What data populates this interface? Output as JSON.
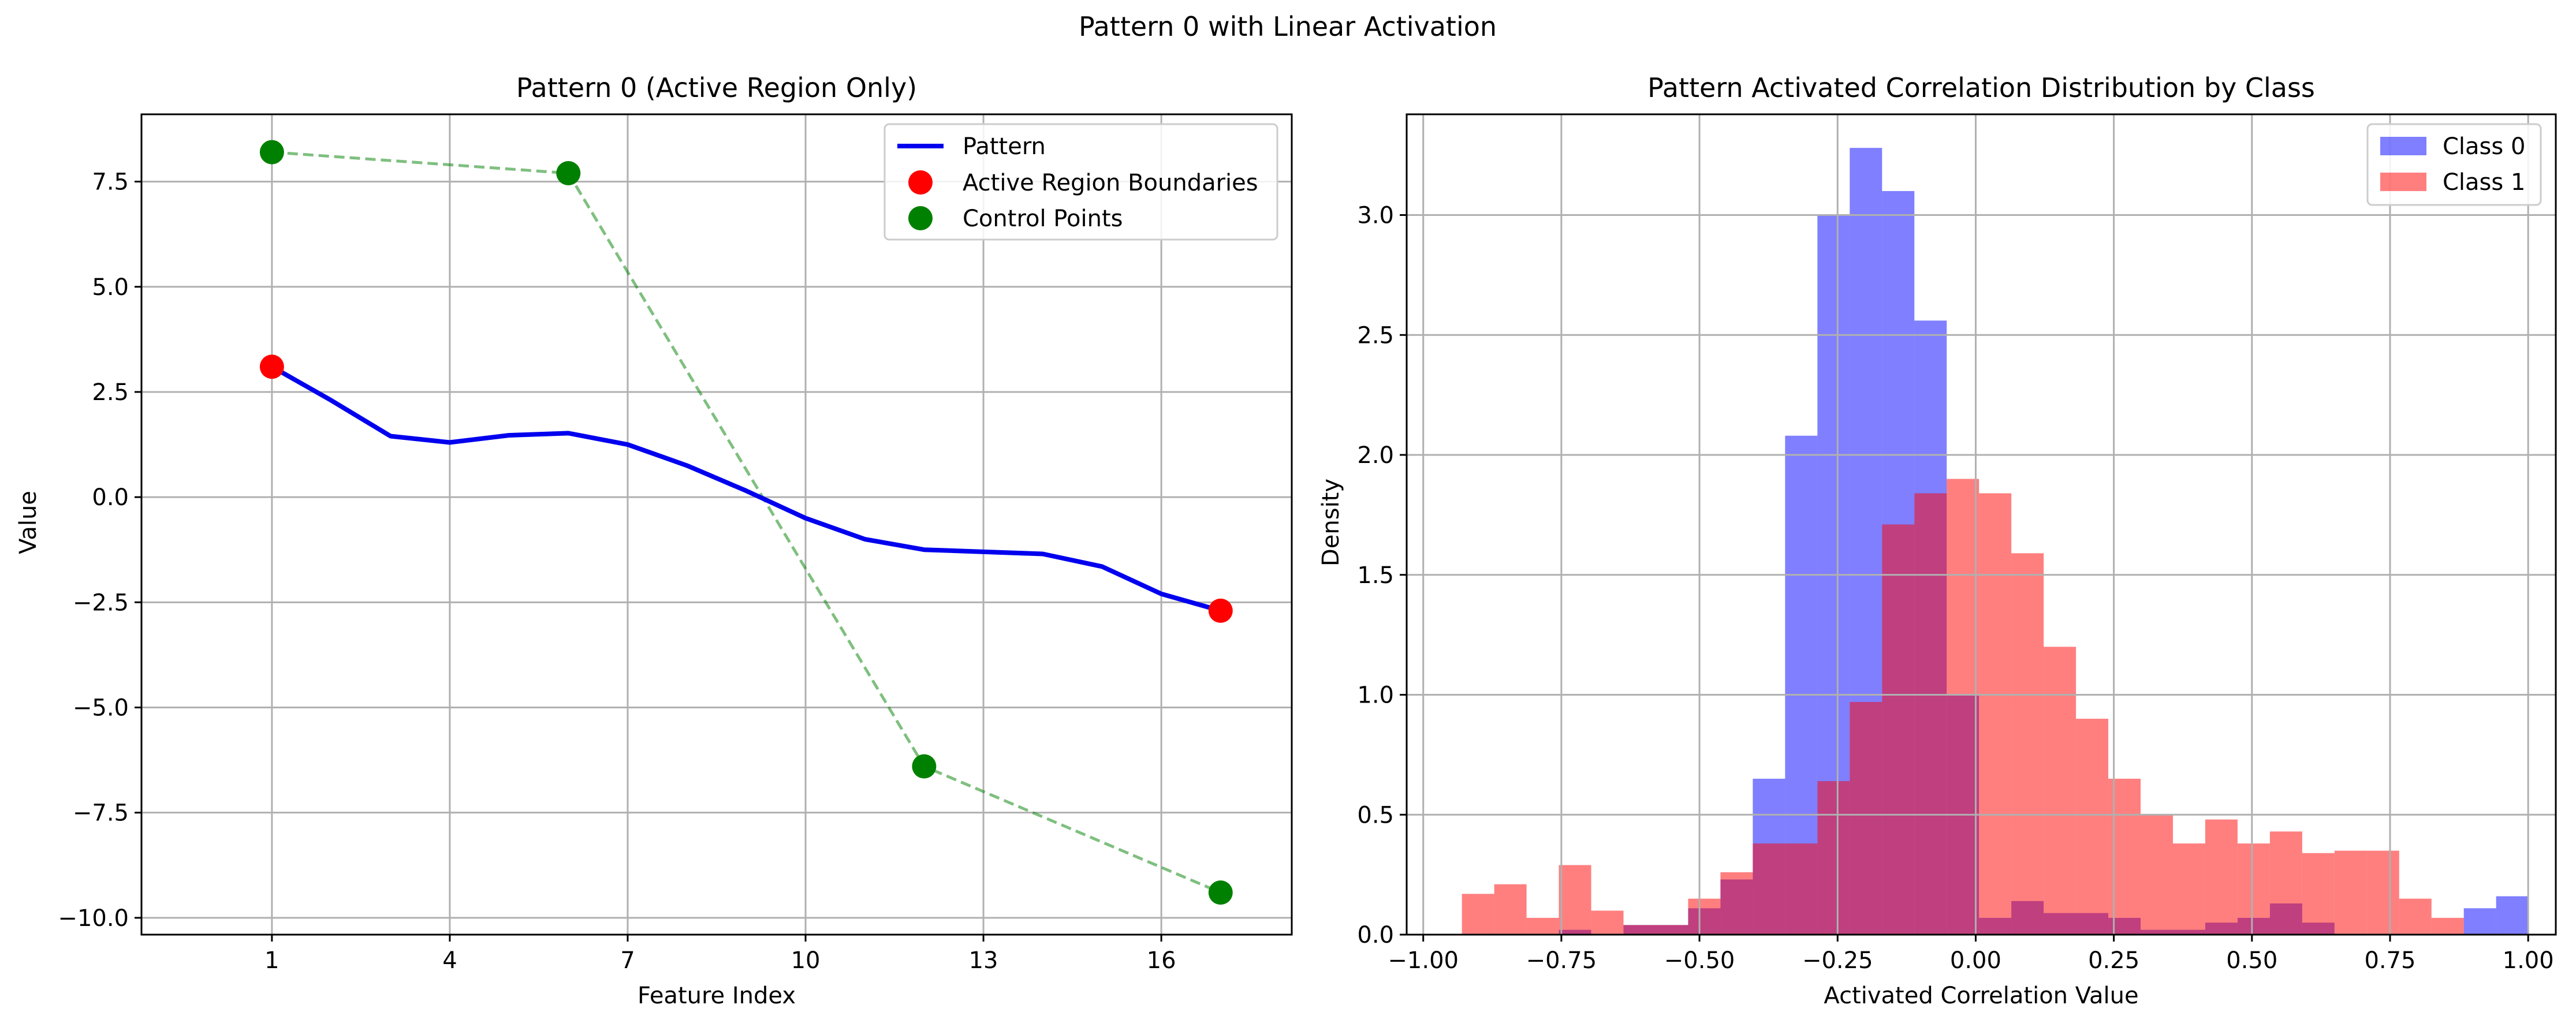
{
  "figure": {
    "suptitle": "Pattern 0 with Linear Activation"
  },
  "chart_data": [
    {
      "type": "line",
      "title": "Pattern 0 (Active Region Only)",
      "xlabel": "Feature Index",
      "ylabel": "Value",
      "xlim": [
        -1.2,
        18.2
      ],
      "ylim": [
        -10.4,
        9.1
      ],
      "xticks": [
        1,
        4,
        7,
        10,
        13,
        16
      ],
      "yticks": [
        -10.0,
        -7.5,
        -5.0,
        -2.5,
        0.0,
        2.5,
        5.0,
        7.5
      ],
      "ytick_labels": [
        "−10.0",
        "−7.5",
        "−5.0",
        "−2.5",
        "0.0",
        "2.5",
        "5.0",
        "7.5"
      ],
      "grid": true,
      "legend": {
        "position": "upper right",
        "entries": [
          "Pattern",
          "Active Region Boundaries",
          "Control Points"
        ]
      },
      "series": [
        {
          "name": "Pattern",
          "style": "line",
          "color": "#0000ee",
          "x": [
            1,
            2,
            3,
            4,
            5,
            6,
            7,
            8,
            9,
            10,
            11,
            12,
            13,
            14,
            15,
            16,
            17
          ],
          "y": [
            3.1,
            2.3,
            1.45,
            1.3,
            1.47,
            1.52,
            1.25,
            0.75,
            0.15,
            -0.5,
            -1.0,
            -1.25,
            -1.3,
            -1.35,
            -1.65,
            -2.3,
            -2.7
          ]
        },
        {
          "name": "Active Region Boundaries",
          "style": "markers",
          "color": "#ff0000",
          "x": [
            1,
            17
          ],
          "y": [
            3.1,
            -2.7
          ]
        },
        {
          "name": "Control Points",
          "style": "markers+dashed-line",
          "color": "#008000",
          "x": [
            1,
            6,
            12,
            17
          ],
          "y": [
            8.2,
            7.7,
            -6.4,
            -9.4
          ]
        }
      ]
    },
    {
      "type": "histogram",
      "title": "Pattern Activated Correlation Distribution by Class",
      "xlabel": "Activated Correlation Value",
      "ylabel": "Density",
      "xlim": [
        -1.03,
        1.05
      ],
      "ylim": [
        0,
        3.42
      ],
      "xticks": [
        -1.0,
        -0.75,
        -0.5,
        -0.25,
        0.0,
        0.25,
        0.5,
        0.75,
        1.0
      ],
      "xtick_labels": [
        "−1.00",
        "−0.75",
        "−0.50",
        "−0.25",
        "0.00",
        "0.25",
        "0.50",
        "0.75",
        "1.00"
      ],
      "yticks": [
        0.0,
        0.5,
        1.0,
        1.5,
        2.0,
        2.5,
        3.0
      ],
      "ytick_labels": [
        "0.0",
        "0.5",
        "1.0",
        "1.5",
        "2.0",
        "2.5",
        "3.0"
      ],
      "grid": true,
      "legend": {
        "position": "upper right",
        "entries": [
          "Class 0",
          "Class 1"
        ]
      },
      "series": [
        {
          "name": "Class 0",
          "color": "#0000ff",
          "opacity": 0.5,
          "bin_start": -0.93,
          "bin_width": 0.0585,
          "values": [
            0,
            0,
            0,
            0.02,
            0,
            0.04,
            0.04,
            0.11,
            0.23,
            0.65,
            2.08,
            3.0,
            3.28,
            3.1,
            2.56,
            1.0,
            0.07,
            0.14,
            0.09,
            0.09,
            0.07,
            0.02,
            0.02,
            0.05,
            0.07,
            0.13,
            0.05,
            0,
            0,
            0,
            0,
            0.11,
            0.16
          ]
        },
        {
          "name": "Class 1",
          "color": "#ff0000",
          "opacity": 0.5,
          "bin_start": -0.93,
          "bin_width": 0.0585,
          "values": [
            0.17,
            0.21,
            0.07,
            0.29,
            0.1,
            0.04,
            0.04,
            0.15,
            0.26,
            0.38,
            0.38,
            0.64,
            0.97,
            1.71,
            1.84,
            1.9,
            1.84,
            1.59,
            1.2,
            0.9,
            0.65,
            0.5,
            0.38,
            0.48,
            0.38,
            0.43,
            0.34,
            0.35,
            0.35,
            0.15,
            0.07,
            0,
            0
          ]
        }
      ]
    }
  ]
}
